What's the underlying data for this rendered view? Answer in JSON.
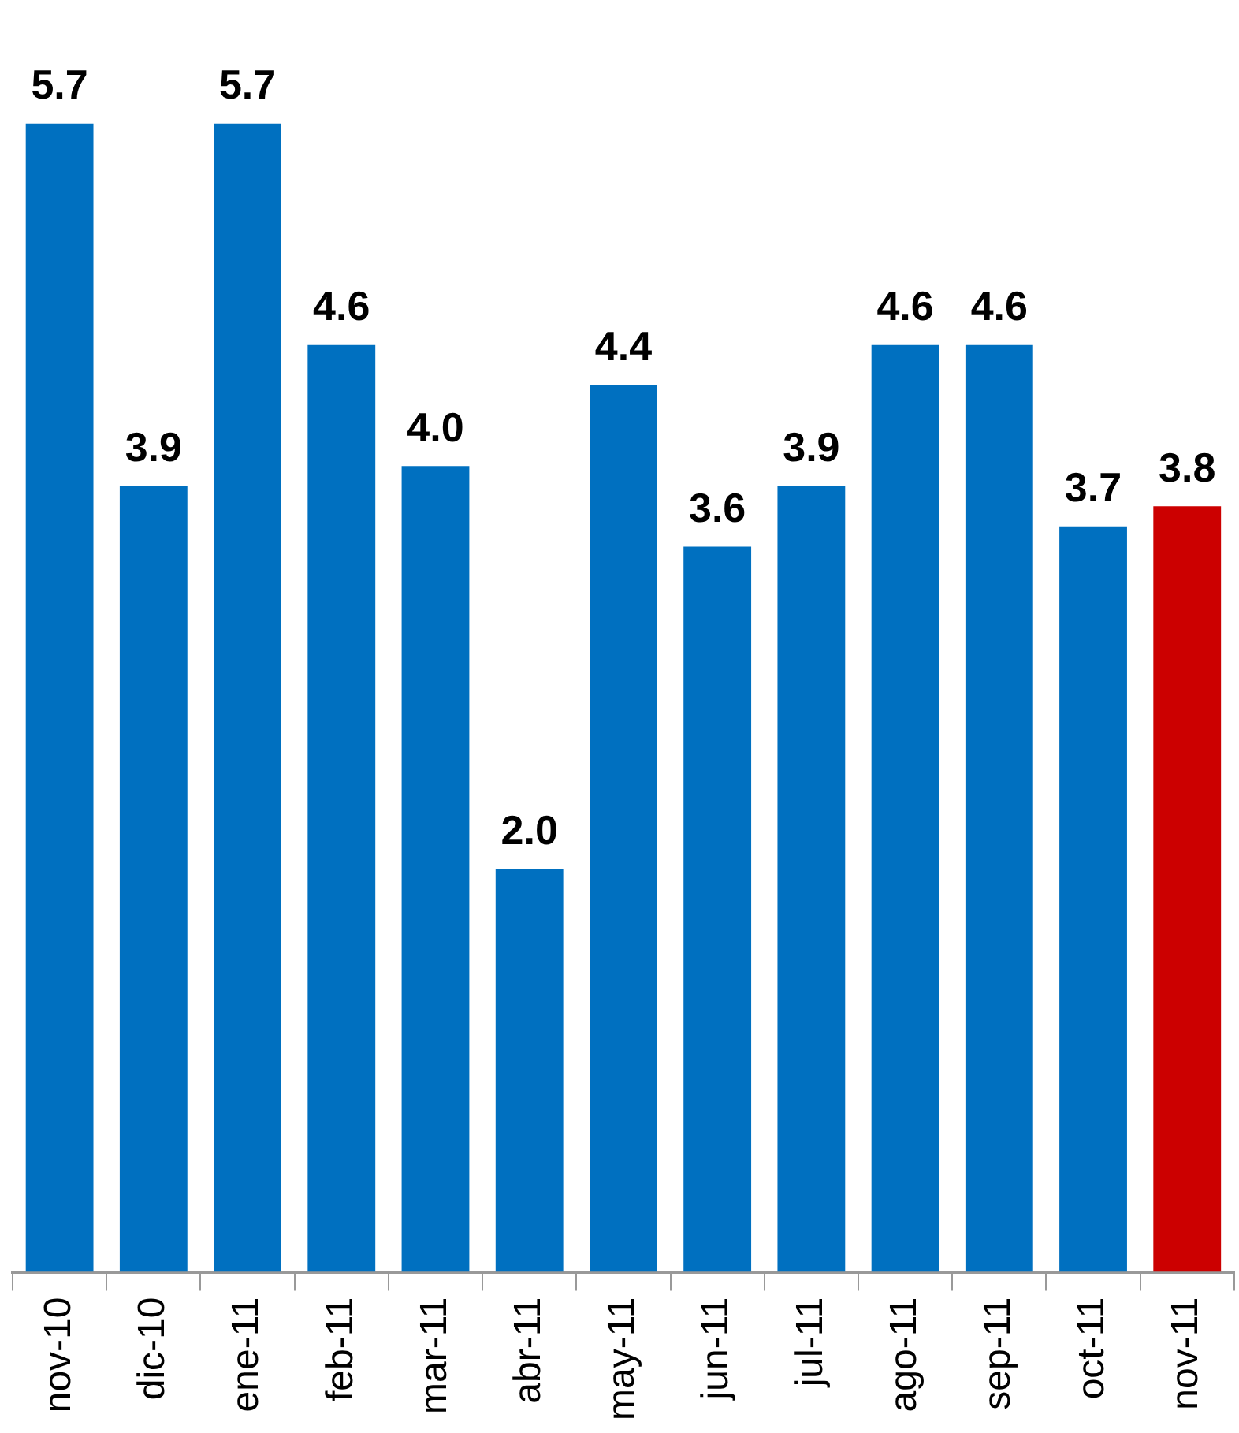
{
  "chart_data": {
    "type": "bar",
    "categories": [
      "nov-10",
      "dic-10",
      "ene-11",
      "feb-11",
      "mar-11",
      "abr-11",
      "may-11",
      "jun-11",
      "jul-11",
      "ago-11",
      "sep-11",
      "oct-11",
      "nov-11"
    ],
    "values": [
      5.7,
      3.9,
      5.7,
      4.6,
      4.0,
      2.0,
      4.4,
      3.6,
      3.9,
      4.6,
      4.6,
      3.7,
      3.8
    ],
    "colors": [
      "#0070c0",
      "#0070c0",
      "#0070c0",
      "#0070c0",
      "#0070c0",
      "#0070c0",
      "#0070c0",
      "#0070c0",
      "#0070c0",
      "#0070c0",
      "#0070c0",
      "#0070c0",
      "#cc0000"
    ],
    "value_labels": [
      "5.7",
      "3.9",
      "5.7",
      "4.6",
      "4.0",
      "2.0",
      "4.4",
      "3.6",
      "3.9",
      "4.6",
      "4.6",
      "3.7",
      "3.8"
    ],
    "grid": false,
    "legend": false
  }
}
